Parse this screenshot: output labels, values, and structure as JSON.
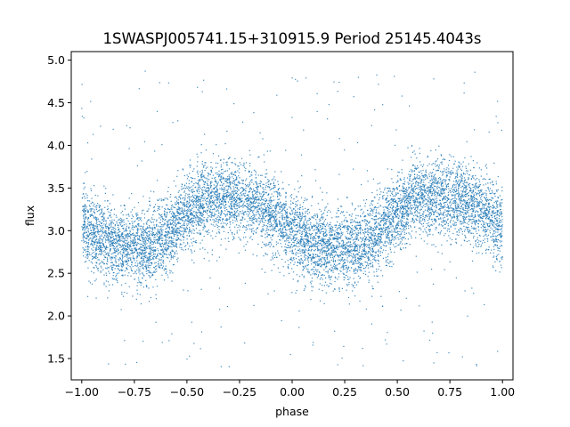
{
  "chart_data": {
    "type": "scatter",
    "title": "1SWASPJ005741.15+310915.9 Period 25145.4043s",
    "xlabel": "phase",
    "ylabel": "flux",
    "xlim": [
      -1.05,
      1.05
    ],
    "ylim": [
      1.25,
      5.1
    ],
    "xticks": [
      -1.0,
      -0.75,
      -0.5,
      -0.25,
      0.0,
      0.25,
      0.5,
      0.75,
      1.0
    ],
    "xtick_labels": [
      "−1.00",
      "−0.75",
      "−0.50",
      "−0.25",
      "0.00",
      "0.25",
      "0.50",
      "0.75",
      "1.00"
    ],
    "yticks": [
      1.5,
      2.0,
      2.5,
      3.0,
      3.5,
      4.0,
      4.5,
      5.0
    ],
    "ytick_labels": [
      "1.5",
      "2.0",
      "2.5",
      "3.0",
      "3.5",
      "4.0",
      "4.5",
      "5.0"
    ],
    "grid": false,
    "point_color": "#1f77b4",
    "series": [
      {
        "phase_range": [
          -1.0,
          1.0
        ],
        "profile_phase": [
          -1.0,
          -0.9,
          -0.8,
          -0.7,
          -0.6,
          -0.5,
          -0.4,
          -0.3,
          -0.2,
          -0.1,
          0.0,
          0.1,
          0.2,
          0.3,
          0.4,
          0.5,
          0.6,
          0.7,
          0.8,
          0.9,
          1.0
        ],
        "profile_flux": [
          3.05,
          2.9,
          2.82,
          2.8,
          2.95,
          3.2,
          3.35,
          3.4,
          3.35,
          3.2,
          3.0,
          2.85,
          2.8,
          2.8,
          2.95,
          3.2,
          3.38,
          3.4,
          3.35,
          3.25,
          3.05
        ],
        "scatter_std": 0.22,
        "flux_range": [
          1.4,
          4.9
        ]
      }
    ]
  }
}
